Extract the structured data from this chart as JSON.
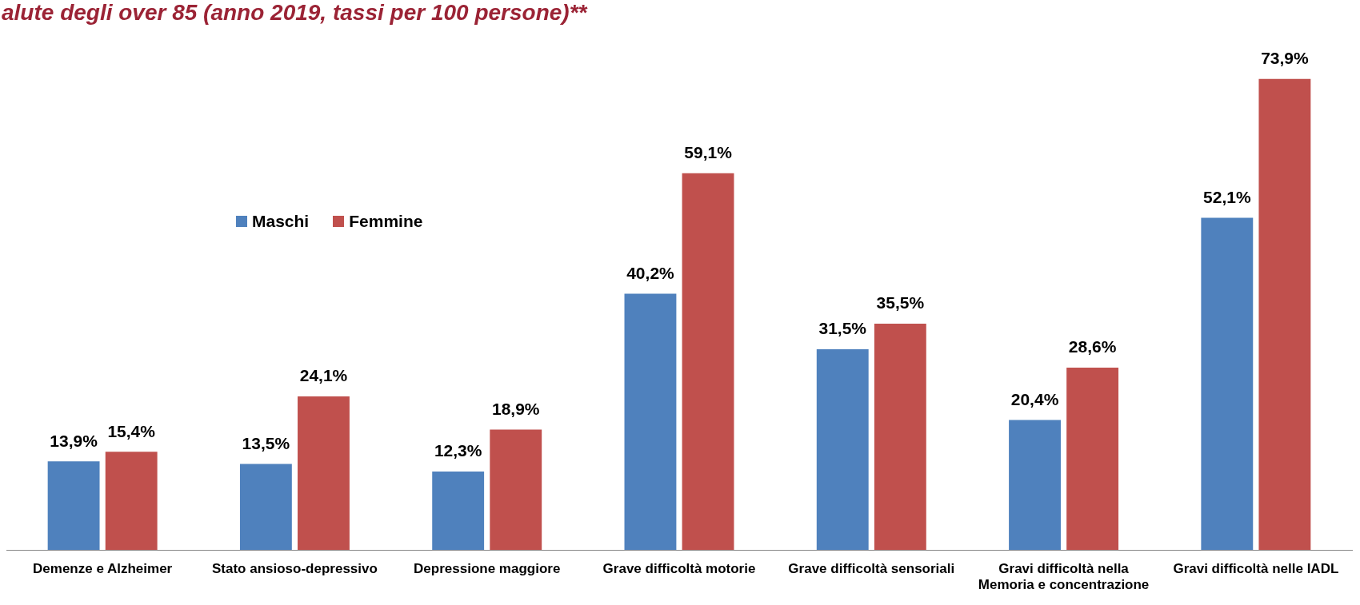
{
  "chart_data": {
    "type": "bar",
    "title": "alute degli over 85 (anno 2019, tassi per 100 persone)**",
    "categories": [
      "Demenze e Alzheimer",
      "Stato ansioso-depressivo",
      "Depressione maggiore",
      "Grave difficoltà motorie",
      "Grave difficoltà sensoriali",
      "Gravi difficoltà nella Memoria e concentrazione",
      "Gravi difficoltà nelle IADL"
    ],
    "series": [
      {
        "name": "Maschi",
        "color": "#4f81bd",
        "values": [
          13.9,
          13.5,
          12.3,
          40.2,
          31.5,
          20.4,
          52.1
        ],
        "value_labels": [
          "13,9%",
          "13,5%",
          "12,3%",
          "40,2%",
          "31,5%",
          "20,4%",
          "52,1%"
        ]
      },
      {
        "name": "Femmine",
        "color": "#c0504d",
        "values": [
          15.4,
          24.1,
          18.9,
          59.1,
          35.5,
          28.6,
          73.9
        ],
        "value_labels": [
          "15,4%",
          "24,1%",
          "18,9%",
          "59,1%",
          "35,5%",
          "28,6%",
          "73,9%"
        ]
      }
    ],
    "legend": "top left",
    "grid": false
  }
}
